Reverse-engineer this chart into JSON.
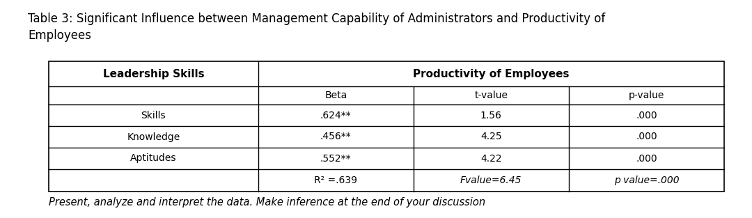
{
  "title_line1": "Table 3: Significant Influence between Management Capability of Administrators and Productivity of",
  "title_line2": "Employees",
  "title_fontsize": 12,
  "header1": "Leadership Skills",
  "header2": "Productivity of Employees",
  "subheaders": [
    "Beta",
    "t-value",
    "p-value"
  ],
  "rows": [
    [
      "Skills",
      ".624**",
      "1.56",
      ".000"
    ],
    [
      "Knowledge",
      ".456**",
      "4.25",
      ".000"
    ],
    [
      "Aptitudes",
      ".552**",
      "4.22",
      ".000"
    ],
    [
      "",
      "R² =.639",
      "Fvalue=6.45",
      "p value=.000"
    ]
  ],
  "footer": "Present, analyze and interpret the data. Make inference at the end of your discussion",
  "footer_fontsize": 10.5,
  "bg_color": "#ffffff",
  "text_color": "#000000",
  "table_line_color": "#000000",
  "figsize": [
    10.8,
    3.13
  ],
  "dpi": 100
}
